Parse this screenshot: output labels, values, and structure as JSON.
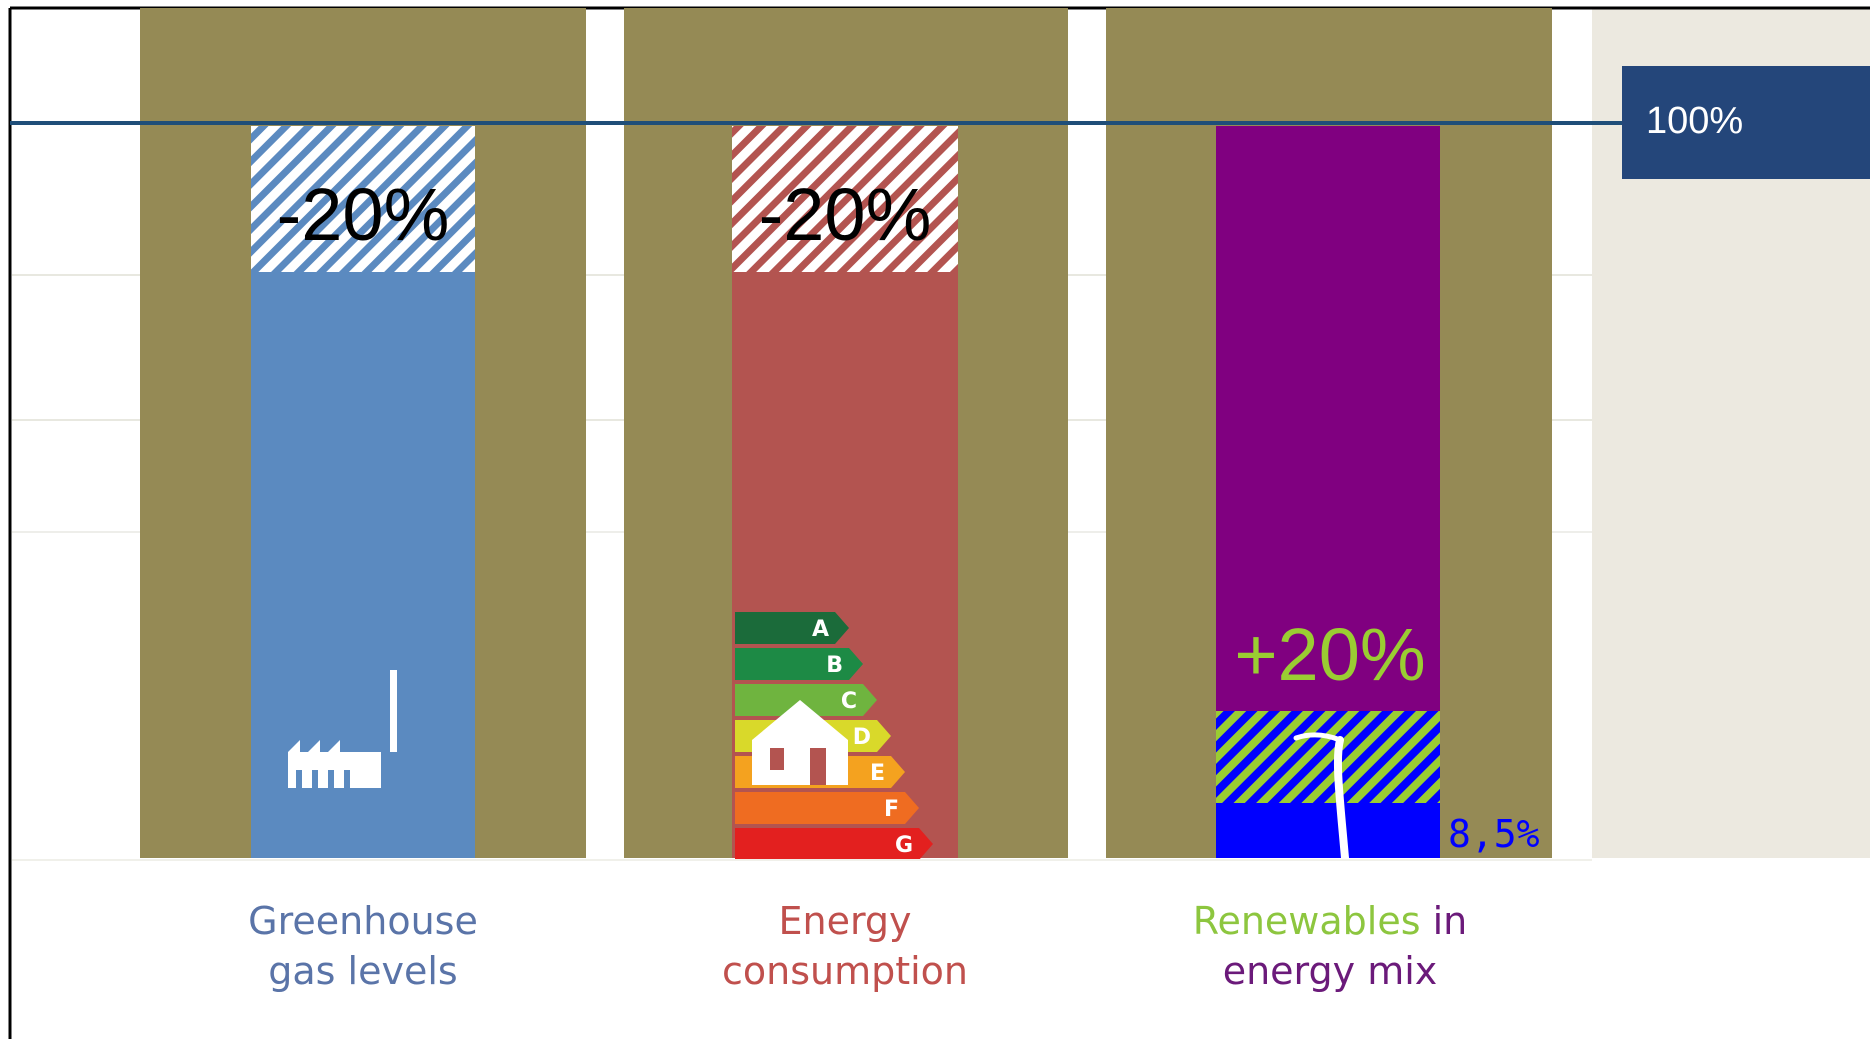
{
  "chart_data": {
    "type": "bar",
    "reference_line": {
      "value": 100,
      "label": "100%",
      "color": "#1f4e79"
    },
    "ylim": [
      0,
      100
    ],
    "categories": [
      {
        "name": "greenhouse",
        "label_lines": [
          "Greenhouse",
          "gas levels"
        ],
        "label_color": "#5a74a8",
        "bar_color": "#5b8ac0",
        "value": 80,
        "change": -20,
        "change_label": "-20%",
        "hatch_color": "#5b8ac0",
        "icon": "factory-icon"
      },
      {
        "name": "energy",
        "label_lines": [
          "Energy",
          "consumption"
        ],
        "label_color": "#c0504d",
        "bar_color": "#b35450",
        "value": 80,
        "change": -20,
        "change_label": "-20%",
        "hatch_color": "#b35450",
        "icon": "energy-efficiency-house-icon",
        "efficiency_classes": [
          "A",
          "B",
          "C",
          "D",
          "E",
          "F",
          "G"
        ]
      },
      {
        "name": "renewables",
        "label_parts": [
          {
            "text": "Renewables",
            "color": "#8dc63f"
          },
          {
            "text": " in",
            "color": "#6b1a7a"
          }
        ],
        "label_line2": "energy mix",
        "label_line2_color": "#6b1a7a",
        "bar_color": "#800080",
        "value": 100,
        "target": 20,
        "target_label": "+20%",
        "target_label_color": "#9acd32",
        "current": 8.5,
        "current_label": "8,5%",
        "current_color": "#0000ff",
        "hatch_color": "#9acd32",
        "icon": "wind-turbine-icon"
      }
    ],
    "colors": {
      "background_column": "#958a55",
      "right_panel": "#ece9e0"
    }
  }
}
